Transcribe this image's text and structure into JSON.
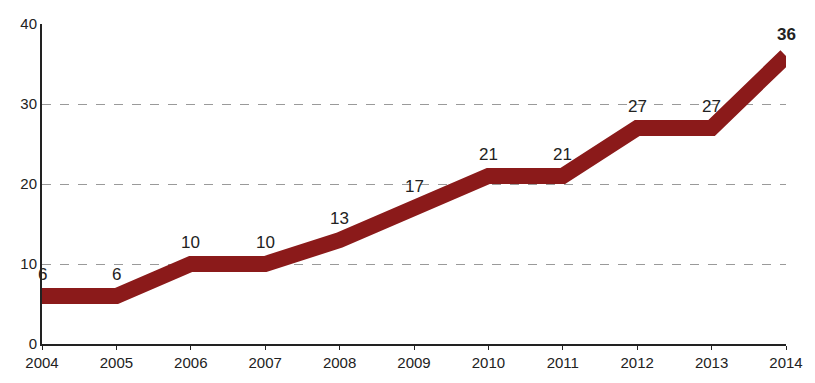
{
  "chart_data": {
    "type": "line",
    "x": [
      2004,
      2005,
      2006,
      2007,
      2008,
      2009,
      2010,
      2011,
      2012,
      2013,
      2014
    ],
    "values": [
      6,
      6,
      10,
      10,
      13,
      17,
      21,
      21,
      27,
      27,
      36
    ],
    "color": "#8b1a1a",
    "xlim": [
      2004,
      2014
    ],
    "xticks": [
      2004,
      2005,
      2006,
      2007,
      2008,
      2009,
      2010,
      2011,
      2012,
      2013,
      2014
    ],
    "ylim": [
      0,
      40
    ],
    "yticks": [
      0,
      10,
      20,
      30,
      40
    ],
    "grid": true,
    "data_labels": true
  }
}
